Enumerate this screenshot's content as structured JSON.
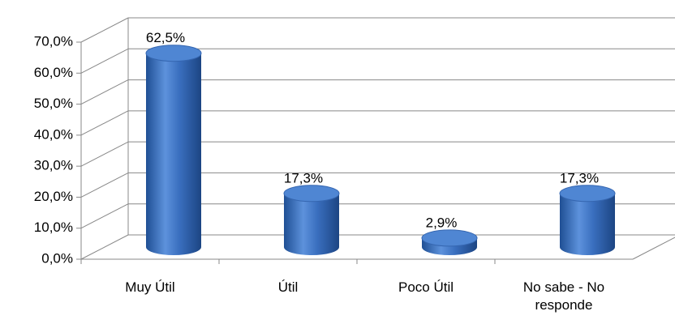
{
  "chart_data": {
    "type": "bar3d",
    "categories": [
      "Muy Útil",
      "Útil",
      "Poco Útil",
      "No sabe - No responde"
    ],
    "values": [
      62.5,
      17.3,
      2.9,
      17.3
    ],
    "value_labels": [
      "62,5%",
      "17,3%",
      "2,9%",
      "17,3%"
    ],
    "color": "#3a6fbf",
    "ylim": [
      0,
      70
    ],
    "yticks": [
      {
        "value": 0,
        "label": "0,0%"
      },
      {
        "value": 10,
        "label": "10,0%"
      },
      {
        "value": 20,
        "label": "20,0%"
      },
      {
        "value": 30,
        "label": "30,0%"
      },
      {
        "value": 40,
        "label": "40,0%"
      },
      {
        "value": 50,
        "label": "50,0%"
      },
      {
        "value": 60,
        "label": "60,0%"
      },
      {
        "value": 70,
        "label": "70,0%"
      }
    ],
    "grid": true
  }
}
